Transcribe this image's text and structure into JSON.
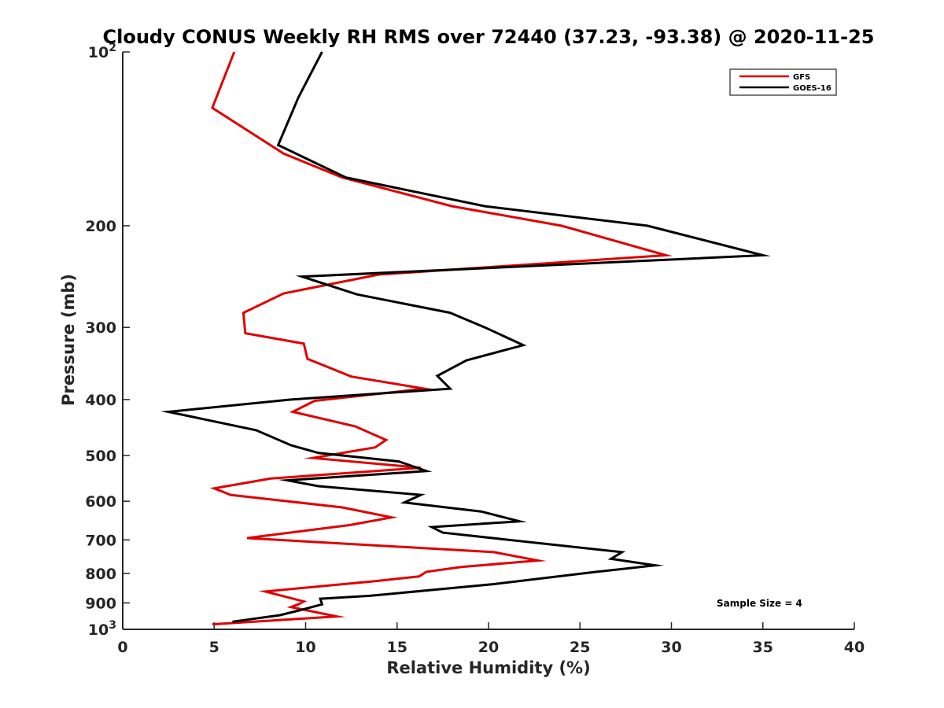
{
  "chart_data": {
    "type": "line",
    "title": "Cloudy CONUS Weekly RH RMS over 72440 (37.23, -93.38) @ 2020-11-25",
    "xlabel": "Relative Humidity (%)",
    "ylabel": "Pressure (mb)",
    "xlim": [
      0,
      40
    ],
    "ylim": [
      100,
      1000
    ],
    "y_scale": "log",
    "y_reversed": true,
    "x_ticks": [
      0,
      5,
      10,
      15,
      20,
      25,
      30,
      35,
      40
    ],
    "x_tick_labels": [
      "0",
      "5",
      "10",
      "15",
      "20",
      "25",
      "30",
      "35",
      "40"
    ],
    "y_ticks": [
      100,
      200,
      300,
      400,
      500,
      600,
      700,
      800,
      900,
      1000
    ],
    "y_tick_labels": [
      {
        "base": "10",
        "exp": "2"
      },
      {
        "base": "200",
        "exp": ""
      },
      {
        "base": "300",
        "exp": ""
      },
      {
        "base": "400",
        "exp": ""
      },
      {
        "base": "500",
        "exp": ""
      },
      {
        "base": "600",
        "exp": ""
      },
      {
        "base": "700",
        "exp": ""
      },
      {
        "base": "800",
        "exp": ""
      },
      {
        "base": "900",
        "exp": ""
      },
      {
        "base": "10",
        "exp": "3"
      }
    ],
    "grid": false,
    "legend_position": "top-right",
    "series": [
      {
        "name": "GFS",
        "color": "#e00000",
        "points": [
          [
            6.1,
            100
          ],
          [
            4.9,
            125
          ],
          [
            8.8,
            150
          ],
          [
            12.0,
            165
          ],
          [
            18.0,
            185
          ],
          [
            24.0,
            200
          ],
          [
            29.7,
            225
          ],
          [
            14.0,
            243
          ],
          [
            8.8,
            262
          ],
          [
            6.6,
            283
          ],
          [
            6.7,
            307
          ],
          [
            9.9,
            320
          ],
          [
            10.1,
            340
          ],
          [
            12.5,
            365
          ],
          [
            16.5,
            383
          ],
          [
            10.5,
            402
          ],
          [
            9.3,
            420
          ],
          [
            12.7,
            445
          ],
          [
            14.4,
            470
          ],
          [
            13.8,
            484
          ],
          [
            10.4,
            505
          ],
          [
            16.3,
            525
          ],
          [
            8.1,
            548
          ],
          [
            5.0,
            570
          ],
          [
            5.9,
            585
          ],
          [
            12.0,
            615
          ],
          [
            14.7,
            640
          ],
          [
            12.4,
            660
          ],
          [
            6.8,
            695
          ],
          [
            20.3,
            735
          ],
          [
            22.7,
            760
          ],
          [
            18.5,
            780
          ],
          [
            16.6,
            795
          ],
          [
            16.2,
            810
          ],
          [
            13.8,
            825
          ],
          [
            7.8,
            860
          ],
          [
            9.9,
            895
          ],
          [
            9.6,
            905
          ],
          [
            9.2,
            915
          ],
          [
            11.7,
            950
          ],
          [
            4.9,
            980
          ]
        ]
      },
      {
        "name": "GOES-16",
        "color": "#000000",
        "points": [
          [
            10.9,
            100
          ],
          [
            9.6,
            120
          ],
          [
            8.5,
            145
          ],
          [
            12.2,
            165
          ],
          [
            19.8,
            185
          ],
          [
            28.7,
            200
          ],
          [
            35.0,
            225
          ],
          [
            9.8,
            245
          ],
          [
            12.8,
            263
          ],
          [
            17.9,
            283
          ],
          [
            19.8,
            300
          ],
          [
            21.9,
            322
          ],
          [
            18.8,
            342
          ],
          [
            17.2,
            364
          ],
          [
            17.9,
            383
          ],
          [
            9.2,
            400
          ],
          [
            2.5,
            420
          ],
          [
            7.3,
            452
          ],
          [
            9.2,
            480
          ],
          [
            10.7,
            495
          ],
          [
            15.1,
            512
          ],
          [
            16.6,
            532
          ],
          [
            9.0,
            552
          ],
          [
            10.7,
            565
          ],
          [
            16.3,
            585
          ],
          [
            15.4,
            603
          ],
          [
            19.6,
            625
          ],
          [
            21.7,
            650
          ],
          [
            16.9,
            665
          ],
          [
            17.5,
            680
          ],
          [
            27.3,
            735
          ],
          [
            26.7,
            755
          ],
          [
            29.1,
            775
          ],
          [
            25.9,
            795
          ],
          [
            20.3,
            835
          ],
          [
            13.5,
            875
          ],
          [
            10.8,
            885
          ],
          [
            10.9,
            905
          ],
          [
            9.8,
            925
          ],
          [
            8.6,
            945
          ],
          [
            6.0,
            970
          ]
        ]
      }
    ],
    "annotation": "Sample Size = 4"
  }
}
